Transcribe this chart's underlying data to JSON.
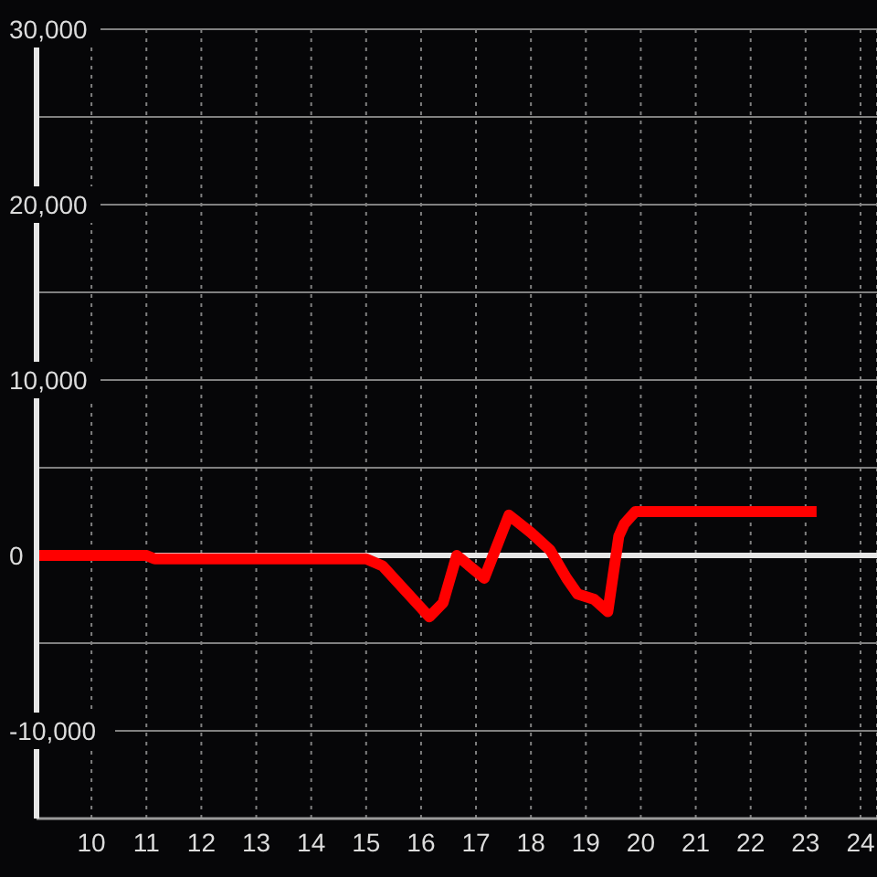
{
  "chart_data": {
    "type": "line",
    "x": [
      9,
      11,
      11.15,
      15,
      15.3,
      15.65,
      16.15,
      16.4,
      16.65,
      17.15,
      17.6,
      18,
      18.35,
      18.65,
      18.85,
      19.15,
      19.4,
      19.6,
      19.7,
      19.9,
      23.2
    ],
    "values": [
      0,
      0,
      -200,
      -200,
      -600,
      -1800,
      -3500,
      -2700,
      0,
      -1300,
      2300,
      1300,
      300,
      -1300,
      -2200,
      -2500,
      -3200,
      1100,
      1800,
      2500,
      2500
    ],
    "color": "#ff0000",
    "xlim": [
      9,
      24.3
    ],
    "xticks": [
      10,
      11,
      12,
      13,
      14,
      15,
      16,
      17,
      18,
      19,
      20,
      21,
      22,
      23,
      24
    ],
    "ylim": [
      -15000,
      30000
    ],
    "yticks": [
      {
        "value": -10000,
        "label": "-10,000"
      },
      {
        "value": -5000,
        "label": null
      },
      0,
      {
        "value": 5000,
        "label": null
      },
      {
        "value": 10000,
        "label": "10,000"
      },
      {
        "value": 15000,
        "label": null
      },
      {
        "value": 20000,
        "label": "20,000"
      },
      {
        "value": 25000,
        "label": null
      },
      {
        "value": 30000,
        "label": "30,000"
      }
    ],
    "grid": true,
    "ref_lines": [
      {
        "axis": "y",
        "value": 0,
        "color": "#e6e6e6"
      }
    ]
  }
}
